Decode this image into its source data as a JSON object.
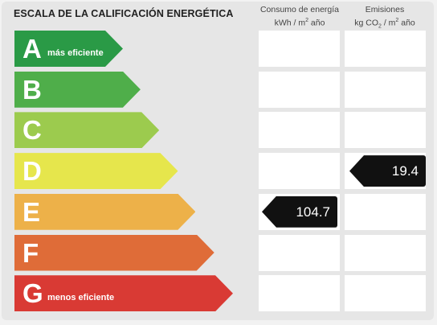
{
  "header": {
    "title": "ESCALA DE LA CALIFICACIÓN ENERGÉTICA",
    "col_energy_line1": "Consumo de energía",
    "col_energy_line2_pre": "kWh / m",
    "col_energy_line2_sup": "2",
    "col_energy_line2_post": " año",
    "col_emissions_line1": "Emisiones",
    "col_emissions_line2_pre": "kg CO",
    "col_emissions_line2_sub": "2",
    "col_emissions_line2_post": " / m",
    "col_emissions_line2_sup": "2",
    "col_emissions_line2_end": " año"
  },
  "ratings": [
    {
      "letter": "A",
      "sublabel": "más eficiente",
      "color": "#2a9a46",
      "bar_fraction": 0.0
    },
    {
      "letter": "B",
      "sublabel": "",
      "color": "#4fae4a",
      "bar_fraction": 0.16
    },
    {
      "letter": "C",
      "sublabel": "",
      "color": "#9ccb4e",
      "bar_fraction": 0.33
    },
    {
      "letter": "D",
      "sublabel": "",
      "color": "#e6e64c",
      "bar_fraction": 0.5
    },
    {
      "letter": "E",
      "sublabel": "",
      "color": "#edb149",
      "bar_fraction": 0.66
    },
    {
      "letter": "F",
      "sublabel": "",
      "color": "#df6c38",
      "bar_fraction": 0.83
    },
    {
      "letter": "G",
      "sublabel": "menos eficiente",
      "color": "#d93a34",
      "bar_fraction": 1.0
    }
  ],
  "energy_value": {
    "rating": "E",
    "value": "104.7"
  },
  "emissions_value": {
    "rating": "D",
    "value": "19.4"
  }
}
